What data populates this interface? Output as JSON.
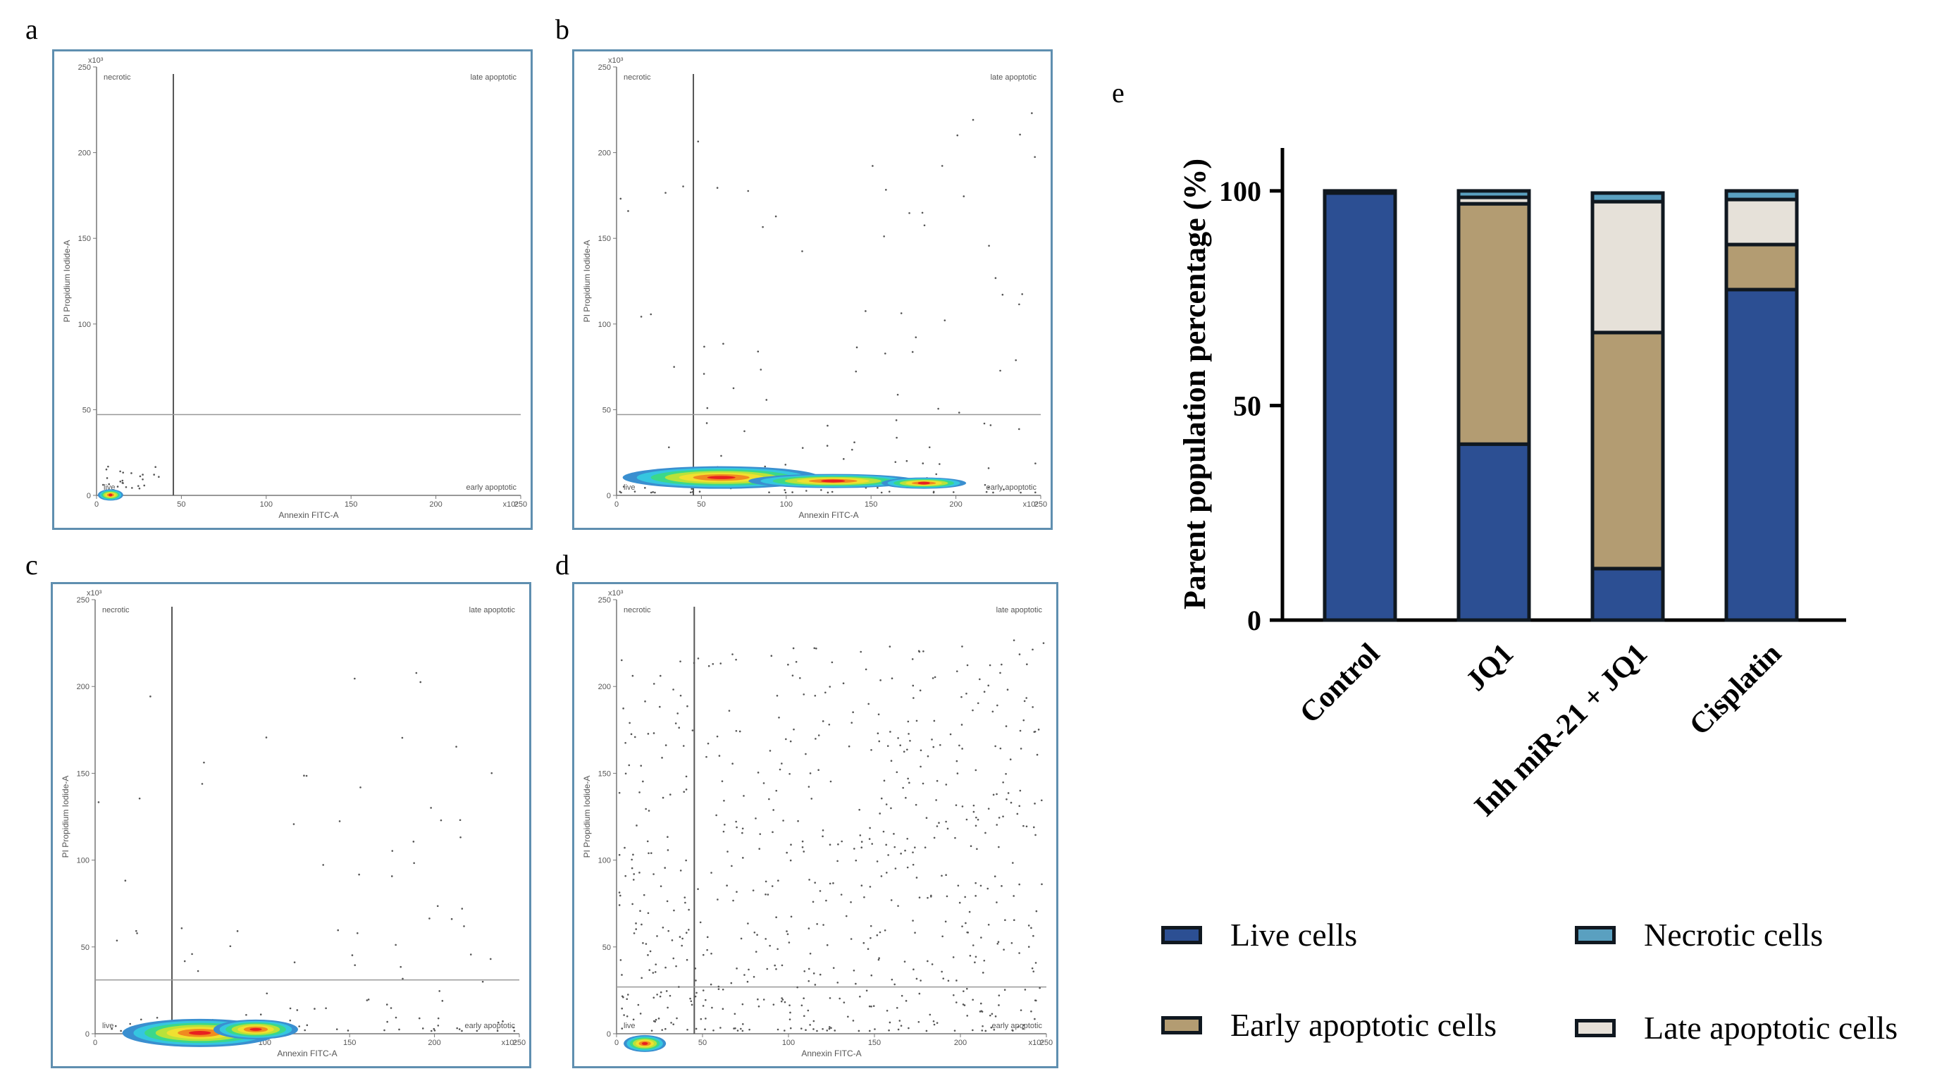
{
  "panels": {
    "a": {
      "letter": "a",
      "quadrants": {
        "tl": "necrotic",
        "tr": "late apoptotic",
        "bl": "live",
        "br": "early apoptotic"
      },
      "xlabel": "Annexin FITC-A",
      "ylabel": "PI Propidium Iodide-A",
      "xticks": [
        "0",
        "50",
        "100",
        "150",
        "200",
        "250"
      ],
      "yticks": [
        "0",
        "50",
        "100",
        "150",
        "200",
        "250"
      ],
      "scale": "x10³"
    },
    "b": {
      "letter": "b",
      "quadrants": {
        "tl": "necrotic",
        "tr": "late apoptotic",
        "bl": "live",
        "br": "early apoptotic"
      },
      "xlabel": "Annexin FITC-A",
      "ylabel": "PI Propidium Iodide-A",
      "xticks": [
        "0",
        "50",
        "100",
        "150",
        "200",
        "250"
      ],
      "yticks": [
        "0",
        "50",
        "100",
        "150",
        "200",
        "250"
      ],
      "scale": "x10³"
    },
    "c": {
      "letter": "c",
      "quadrants": {
        "tl": "necrotic",
        "tr": "late apoptotic",
        "bl": "live",
        "br": "early apoptotic"
      },
      "xlabel": "Annexin FITC-A",
      "ylabel": "PI Propidium Iodide-A",
      "xticks": [
        "0",
        "50",
        "100",
        "150",
        "200",
        "250"
      ],
      "yticks": [
        "0",
        "50",
        "100",
        "150",
        "200",
        "250"
      ],
      "scale": "x10³"
    },
    "d": {
      "letter": "d",
      "quadrants": {
        "tl": "necrotic",
        "tr": "late apoptotic",
        "bl": "live",
        "br": "early apoptotic"
      },
      "xlabel": "Annexin FITC-A",
      "ylabel": "PI Propidium Iodide-A",
      "xticks": [
        "0",
        "50",
        "100",
        "150",
        "200",
        "250"
      ],
      "yticks": [
        "0",
        "50",
        "100",
        "150",
        "200",
        "250"
      ],
      "scale": "x10³"
    },
    "e": {
      "letter": "e"
    }
  },
  "colors": {
    "live": "#2c4f93",
    "early": "#b39c72",
    "late": "#e6e1d9",
    "necrotic": "#5aa0c0",
    "edge": "#101820",
    "flow_border": "#5f8fb0"
  },
  "chart_data": {
    "type": "bar",
    "stacked": true,
    "title": "",
    "xlabel": "",
    "ylabel": "Parent population percentage (%)",
    "ylim": [
      0,
      110
    ],
    "yticks": [
      0,
      50,
      100
    ],
    "categories": [
      "Control",
      "JQ1",
      "Inh miR-21 + JQ1",
      "Cisplatin"
    ],
    "series": [
      {
        "name": "Live cells",
        "key": "live",
        "values": [
          99.5,
          41,
          12,
          77
        ]
      },
      {
        "name": "Early apoptotic cells",
        "key": "early",
        "values": [
          0.2,
          56,
          55,
          10.5
        ]
      },
      {
        "name": "Late apoptotic cells",
        "key": "late",
        "values": [
          0.1,
          1.5,
          30.5,
          10.5
        ]
      },
      {
        "name": "Necrotic cells",
        "key": "necrotic",
        "values": [
          0.2,
          1.5,
          2,
          2
        ]
      }
    ],
    "legend_position": "bottom"
  }
}
